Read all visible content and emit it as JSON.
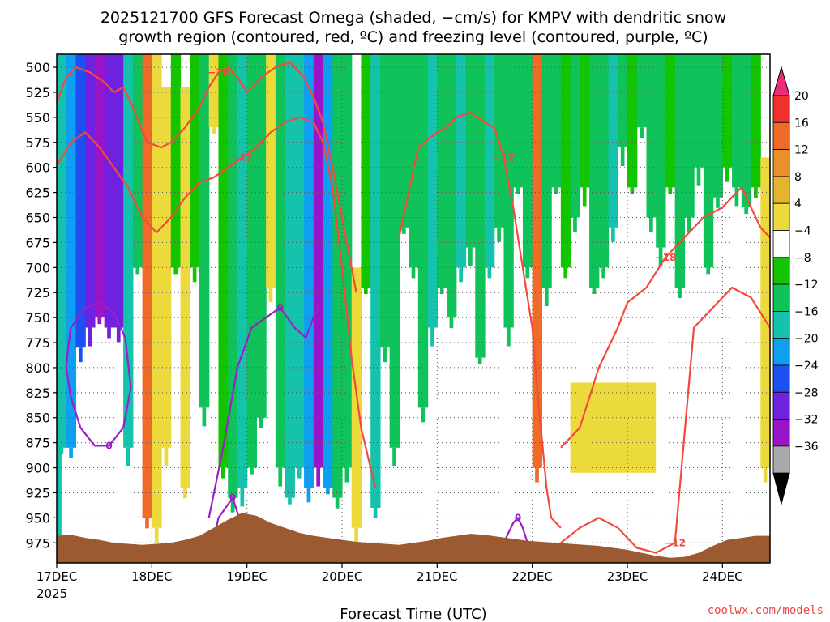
{
  "colors": {
    "dgz_contour": "#f24a3c",
    "freezing_contour": "#9a1fc8",
    "terrain": "#9b5a31",
    "grid": "#555555"
  },
  "chart_data": {
    "type": "heatmap",
    "title_line1": "2025121700 GFS Forecast Omega (shaded, −cm/s) for KMPV with dendritic snow",
    "title_line2": "growth region (contoured, red, ºC) and freezing level (contoured, purple, ºC)",
    "xlabel": "Forecast Time (UTC)",
    "x_ticks": [
      "17DEC",
      "18DEC",
      "19DEC",
      "20DEC",
      "21DEC",
      "22DEC",
      "23DEC",
      "24DEC"
    ],
    "x_year": "2025",
    "y_ticks": [
      500,
      525,
      550,
      575,
      600,
      625,
      650,
      675,
      700,
      725,
      750,
      775,
      800,
      825,
      850,
      875,
      900,
      925,
      950,
      975
    ],
    "y_range_hPa": [
      487,
      995
    ],
    "x_range_days": [
      17.0,
      24.5
    ],
    "grid": true,
    "colorbar": {
      "labels": [
        "20",
        "16",
        "12",
        "8",
        "4",
        "−4",
        "−8",
        "−12",
        "−16",
        "−20",
        "−24",
        "−28",
        "−32",
        "−36"
      ],
      "colors": [
        "#ee2a7b",
        "#f0302e",
        "#f06a28",
        "#e8902a",
        "#e4b42e",
        "#ecd93c",
        "#ffffff",
        "#13c400",
        "#10c25a",
        "#15c2ac",
        "#0e9ff0",
        "#1e4ff2",
        "#6e22e0",
        "#9a14c8",
        "#a9a9a9",
        "#000000"
      ],
      "top_color": "#ee2a7b",
      "bottom_color": "#000000"
    },
    "omega_bands": [
      {
        "x": 17.0,
        "p1": 487,
        "p2": 880,
        "v": -14
      },
      {
        "x": 17.1,
        "p1": 487,
        "p2": 880,
        "v": -16
      },
      {
        "x": 17.2,
        "p1": 487,
        "p2": 780,
        "v": -20
      },
      {
        "x": 17.3,
        "p1": 487,
        "p2": 760,
        "v": -26
      },
      {
        "x": 17.4,
        "p1": 487,
        "p2": 750,
        "v": -28
      },
      {
        "x": 17.5,
        "p1": 487,
        "p2": 760,
        "v": -26
      },
      {
        "x": 17.6,
        "p1": 487,
        "p2": 760,
        "v": -24
      },
      {
        "x": 17.7,
        "p1": 487,
        "p2": 880,
        "v": -14
      },
      {
        "x": 17.8,
        "p1": 487,
        "p2": 700,
        "v": -9
      },
      {
        "x": 17.9,
        "p1": 487,
        "p2": 950,
        "v": 13
      },
      {
        "x": 18.0,
        "p1": 487,
        "p2": 960,
        "v": 7
      },
      {
        "x": 18.1,
        "p1": 520,
        "p2": 880,
        "v": 5
      },
      {
        "x": 18.2,
        "p1": 487,
        "p2": 700,
        "v": -7
      },
      {
        "x": 18.3,
        "p1": 520,
        "p2": 920,
        "v": 6
      },
      {
        "x": 18.4,
        "p1": 487,
        "p2": 700,
        "v": -7
      },
      {
        "x": 18.5,
        "p1": 487,
        "p2": 840,
        "v": -9
      },
      {
        "x": 18.6,
        "p1": 487,
        "p2": 560,
        "v": 6
      },
      {
        "x": 18.7,
        "p1": 487,
        "p2": 900,
        "v": -7
      },
      {
        "x": 18.8,
        "p1": 487,
        "p2": 930,
        "v": -10
      },
      {
        "x": 18.9,
        "p1": 487,
        "p2": 920,
        "v": -13
      },
      {
        "x": 19.0,
        "p1": 487,
        "p2": 900,
        "v": -8
      },
      {
        "x": 19.1,
        "p1": 487,
        "p2": 850,
        "v": -9
      },
      {
        "x": 19.2,
        "p1": 487,
        "p2": 720,
        "v": 6
      },
      {
        "x": 19.3,
        "p1": 487,
        "p2": 900,
        "v": -9
      },
      {
        "x": 19.4,
        "p1": 487,
        "p2": 930,
        "v": -12
      },
      {
        "x": 19.5,
        "p1": 487,
        "p2": 900,
        "v": -14
      },
      {
        "x": 19.6,
        "p1": 487,
        "p2": 920,
        "v": -18
      },
      {
        "x": 19.7,
        "p1": 487,
        "p2": 900,
        "v": -30
      },
      {
        "x": 19.8,
        "p1": 487,
        "p2": 920,
        "v": -18
      },
      {
        "x": 19.9,
        "p1": 487,
        "p2": 930,
        "v": -10
      },
      {
        "x": 20.0,
        "p1": 487,
        "p2": 900,
        "v": -9
      },
      {
        "x": 20.1,
        "p1": 700,
        "p2": 960,
        "v": 7
      },
      {
        "x": 20.2,
        "p1": 487,
        "p2": 720,
        "v": -7
      },
      {
        "x": 20.3,
        "p1": 487,
        "p2": 940,
        "v": -12
      },
      {
        "x": 20.4,
        "p1": 487,
        "p2": 780,
        "v": -9
      },
      {
        "x": 20.5,
        "p1": 487,
        "p2": 880,
        "v": -8
      },
      {
        "x": 20.6,
        "p1": 487,
        "p2": 660,
        "v": -9
      },
      {
        "x": 20.7,
        "p1": 487,
        "p2": 700,
        "v": -11
      },
      {
        "x": 20.8,
        "p1": 487,
        "p2": 840,
        "v": -9
      },
      {
        "x": 20.9,
        "p1": 487,
        "p2": 760,
        "v": -13
      },
      {
        "x": 21.0,
        "p1": 487,
        "p2": 720,
        "v": -10
      },
      {
        "x": 21.1,
        "p1": 487,
        "p2": 750,
        "v": -9
      },
      {
        "x": 21.2,
        "p1": 487,
        "p2": 700,
        "v": -12
      },
      {
        "x": 21.3,
        "p1": 487,
        "p2": 680,
        "v": -9
      },
      {
        "x": 21.4,
        "p1": 487,
        "p2": 790,
        "v": -10
      },
      {
        "x": 21.5,
        "p1": 487,
        "p2": 700,
        "v": -12
      },
      {
        "x": 21.6,
        "p1": 487,
        "p2": 660,
        "v": -9
      },
      {
        "x": 21.7,
        "p1": 487,
        "p2": 760,
        "v": -11
      },
      {
        "x": 21.8,
        "p1": 487,
        "p2": 620,
        "v": -8
      },
      {
        "x": 21.9,
        "p1": 487,
        "p2": 700,
        "v": -9
      },
      {
        "x": 22.0,
        "p1": 487,
        "p2": 900,
        "v": 13
      },
      {
        "x": 22.1,
        "p1": 487,
        "p2": 720,
        "v": -9
      },
      {
        "x": 22.2,
        "p1": 487,
        "p2": 620,
        "v": -8
      },
      {
        "x": 22.3,
        "p1": 487,
        "p2": 700,
        "v": -7
      },
      {
        "x": 22.4,
        "p1": 487,
        "p2": 650,
        "v": -9
      },
      {
        "x": 22.5,
        "p1": 487,
        "p2": 620,
        "v": -7
      },
      {
        "x": 22.6,
        "p1": 487,
        "p2": 720,
        "v": -10
      },
      {
        "x": 22.7,
        "p1": 487,
        "p2": 700,
        "v": -9
      },
      {
        "x": 22.8,
        "p1": 487,
        "p2": 660,
        "v": -12
      },
      {
        "x": 22.9,
        "p1": 487,
        "p2": 580,
        "v": -9
      },
      {
        "x": 23.0,
        "p1": 487,
        "p2": 620,
        "v": -7
      },
      {
        "x": 23.1,
        "p1": 487,
        "p2": 560,
        "v": -9
      },
      {
        "x": 23.2,
        "p1": 487,
        "p2": 650,
        "v": -8
      },
      {
        "x": 23.3,
        "p1": 487,
        "p2": 680,
        "v": -9
      },
      {
        "x": 23.4,
        "p1": 487,
        "p2": 620,
        "v": -7
      },
      {
        "x": 23.5,
        "p1": 487,
        "p2": 720,
        "v": -10
      },
      {
        "x": 23.6,
        "p1": 487,
        "p2": 650,
        "v": -9
      },
      {
        "x": 23.7,
        "p1": 487,
        "p2": 600,
        "v": -8
      },
      {
        "x": 23.8,
        "p1": 487,
        "p2": 700,
        "v": -9
      },
      {
        "x": 23.9,
        "p1": 487,
        "p2": 630,
        "v": -8
      },
      {
        "x": 24.0,
        "p1": 487,
        "p2": 600,
        "v": -7
      },
      {
        "x": 24.1,
        "p1": 487,
        "p2": 620,
        "v": -9
      },
      {
        "x": 24.2,
        "p1": 487,
        "p2": 640,
        "v": -8
      },
      {
        "x": 24.3,
        "p1": 487,
        "p2": 620,
        "v": -7
      },
      {
        "x": 24.4,
        "p1": 590,
        "p2": 900,
        "v": 5
      }
    ],
    "omega_patches": [
      {
        "x1": 22.4,
        "x2": 23.3,
        "p1": 815,
        "p2": 905,
        "v": 5
      },
      {
        "x1": 17.0,
        "x2": 17.05,
        "p1": 487,
        "p2": 990,
        "v": -14
      }
    ],
    "dgz_contours": [
      {
        "label": "−18",
        "x": [
          17.0,
          17.1,
          17.2,
          17.35,
          17.5,
          17.6,
          17.7,
          17.8,
          17.95,
          18.1,
          18.2,
          18.35,
          18.5,
          18.6,
          18.7,
          18.8,
          18.9,
          19.0,
          19.15,
          19.3,
          19.45,
          19.6,
          19.7,
          19.8,
          19.9,
          20.0,
          20.1,
          20.15
        ],
        "p": [
          535,
          510,
          500,
          505,
          515,
          525,
          520,
          540,
          575,
          580,
          575,
          560,
          540,
          520,
          505,
          500,
          510,
          525,
          510,
          500,
          495,
          510,
          530,
          555,
          600,
          650,
          700,
          725
        ]
      },
      {
        "label": "−12",
        "x": [
          17.0,
          17.15,
          17.3,
          17.45,
          17.6,
          17.75,
          17.9,
          18.05,
          18.2,
          18.35,
          18.5,
          18.65,
          18.8,
          18.95,
          19.1,
          19.25,
          19.4,
          19.55,
          19.7,
          19.8,
          19.9,
          20.0,
          20.1,
          20.2,
          20.3,
          20.35
        ],
        "p": [
          598,
          575,
          565,
          580,
          600,
          620,
          650,
          665,
          650,
          630,
          615,
          610,
          600,
          590,
          580,
          565,
          555,
          550,
          555,
          575,
          620,
          700,
          790,
          860,
          900,
          920
        ]
      },
      {
        "label": "−12",
        "x": [
          20.6,
          20.8,
          21.0,
          21.1,
          21.2,
          21.35,
          21.5,
          21.6,
          21.7,
          21.8,
          21.9,
          22.0,
          22.05,
          22.1,
          22.15,
          22.2,
          22.3
        ],
        "p": [
          670,
          580,
          565,
          560,
          550,
          545,
          555,
          560,
          590,
          640,
          700,
          760,
          820,
          870,
          920,
          950,
          960
        ]
      },
      {
        "label": "−18",
        "x": [
          22.3,
          22.5,
          22.7,
          22.9,
          23.0,
          23.2,
          23.4,
          23.6,
          23.8,
          24.0,
          24.2,
          24.4,
          24.5
        ],
        "p": [
          880,
          860,
          800,
          760,
          735,
          720,
          690,
          670,
          650,
          640,
          620,
          660,
          670
        ]
      },
      {
        "label": "−12",
        "x": [
          22.3,
          22.5,
          22.7,
          22.9,
          23.1,
          23.3,
          23.5,
          23.7,
          23.9,
          24.1,
          24.3,
          24.5
        ],
        "p": [
          975,
          960,
          950,
          960,
          980,
          985,
          975,
          760,
          740,
          720,
          730,
          760
        ]
      }
    ],
    "freezing_contours": [
      {
        "label": "0",
        "x": [
          17.15,
          17.3,
          17.45,
          17.6,
          17.72,
          17.78,
          17.7,
          17.55,
          17.4,
          17.25,
          17.15,
          17.1,
          17.12,
          17.15
        ],
        "p": [
          760,
          740,
          735,
          745,
          770,
          820,
          860,
          878,
          878,
          860,
          830,
          800,
          780,
          760
        ]
      },
      {
        "label": "0",
        "x": [
          18.6,
          18.75,
          18.9,
          19.05,
          19.2,
          19.35,
          19.5,
          19.62,
          19.7,
          19.75
        ],
        "p": [
          950,
          880,
          800,
          760,
          750,
          740,
          760,
          770,
          750,
          740
        ]
      },
      {
        "label": "0",
        "x": [
          18.6,
          18.7,
          18.85,
          18.95,
          19.0
        ],
        "p": [
          995,
          950,
          930,
          960,
          985
        ]
      },
      {
        "label": "0",
        "x": [
          21.7,
          21.8,
          21.85,
          21.9,
          21.95
        ],
        "p": [
          975,
          955,
          950,
          960,
          975
        ]
      }
    ],
    "terrain_top_hPa": [
      968,
      967,
      970,
      972,
      975,
      976,
      977,
      976,
      975,
      972,
      968,
      960,
      952,
      945,
      948,
      955,
      960,
      965,
      968,
      970,
      972,
      974,
      975,
      976,
      977,
      975,
      973,
      970,
      968,
      966,
      967,
      969,
      971,
      973,
      974,
      975,
      976,
      977,
      978,
      980,
      982,
      985,
      988,
      990,
      989,
      985,
      978,
      972,
      970,
      968,
      968
    ]
  },
  "credit": "coolwx.com/models"
}
